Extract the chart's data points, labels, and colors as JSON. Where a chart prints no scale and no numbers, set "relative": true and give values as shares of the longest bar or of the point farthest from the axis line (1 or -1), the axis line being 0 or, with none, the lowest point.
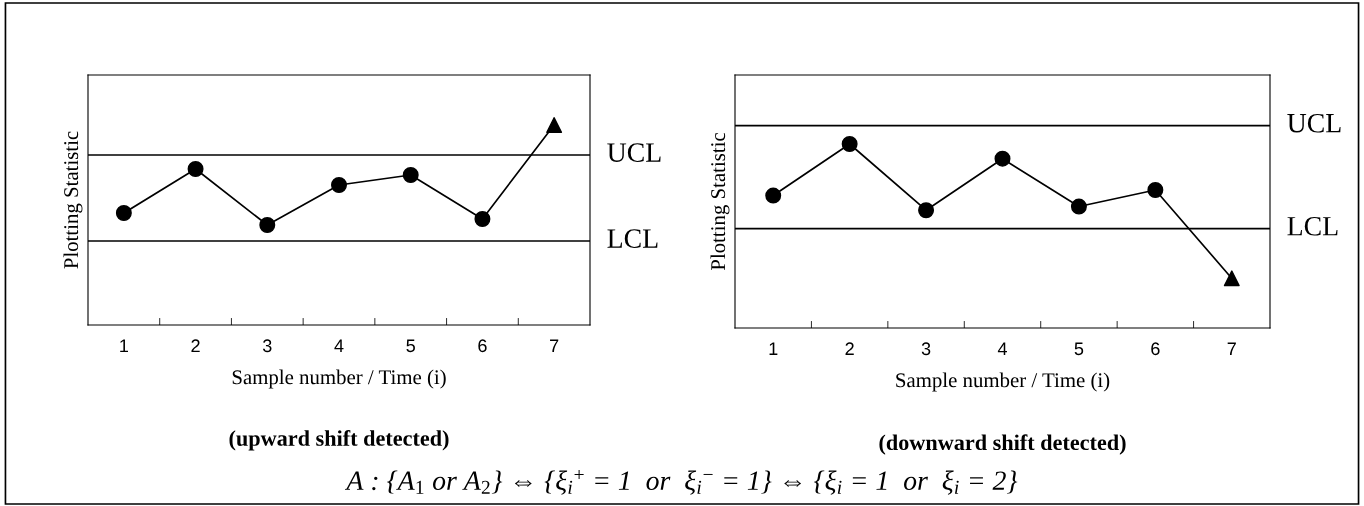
{
  "chart_data": [
    {
      "type": "line",
      "title": "(upward shift detected)",
      "xlabel": "Sample number / Time (i)",
      "ylabel": "Plotting Statistic",
      "relative": true,
      "categories": [
        "1",
        "2",
        "3",
        "4",
        "5",
        "6",
        "7"
      ],
      "series": [
        {
          "color": "#000000",
          "marker": "none",
          "values": [
            0.56,
            0.78,
            0.5,
            0.7,
            0.75,
            0.53,
            1.0
          ]
        },
        {
          "type": "scatter",
          "color": "#000000",
          "marker": "circle",
          "values": [
            0.56,
            0.78,
            0.5,
            0.7,
            0.75,
            0.53,
            null
          ]
        },
        {
          "type": "scatter",
          "color": "#000000",
          "marker": "triangle",
          "values": [
            null,
            null,
            null,
            null,
            null,
            null,
            1.0
          ]
        }
      ],
      "ref_lines": [
        {
          "axis": "y",
          "value": 0.85,
          "label": "UCL",
          "color": "#000000"
        },
        {
          "axis": "y",
          "value": 0.42,
          "label": "LCL",
          "color": "#000000"
        }
      ],
      "annotations": [
        "A : {A$_{1}$ or A$_{2}$} ⇔ {ξ$_{i}$$^{+}$ = 1  or  ξ$_{i}$$^{−}$ = 1} ⇔ {ξ$_{i}$ = 1  or  ξ$_{i}$ = 2}"
      ],
      "grid": false,
      "legend": false
    },
    {
      "type": "line",
      "title": "(downward shift detected)",
      "xlabel": "Sample number / Time (i)",
      "ylabel": "Plotting Statistic",
      "relative": true,
      "categories": [
        "1",
        "2",
        "3",
        "4",
        "5",
        "6",
        "7"
      ],
      "series": [
        {
          "color": "#000000",
          "marker": "none",
          "values": [
            0.72,
            1.0,
            0.64,
            0.92,
            0.66,
            0.75,
            0.27
          ]
        },
        {
          "type": "scatter",
          "color": "#000000",
          "marker": "circle",
          "values": [
            0.72,
            1.0,
            0.64,
            0.92,
            0.66,
            0.75,
            null
          ]
        },
        {
          "type": "scatter",
          "color": "#000000",
          "marker": "triangle",
          "values": [
            null,
            null,
            null,
            null,
            null,
            null,
            0.27
          ]
        }
      ],
      "ref_lines": [
        {
          "axis": "y",
          "value": 1.1,
          "label": "UCL",
          "color": "#000000"
        },
        {
          "axis": "y",
          "value": 0.54,
          "label": "LCL",
          "color": "#000000"
        }
      ],
      "grid": false,
      "legend": false
    }
  ]
}
